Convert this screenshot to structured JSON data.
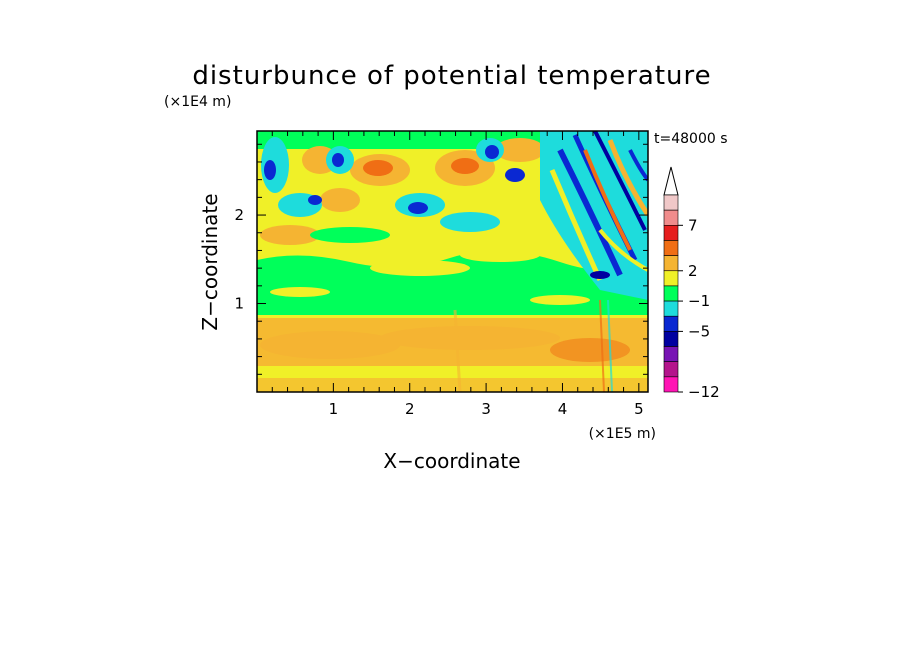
{
  "chart_data": {
    "type": "heatmap",
    "title": "disturbunce of potential temperature",
    "xlabel": "X−coordinate",
    "ylabel": "Z−coordinate",
    "x_unit": "(×1E5 m)",
    "y_unit": "(×1E4 m)",
    "time_label": "t=48000 s",
    "xlim": [
      0,
      5.12
    ],
    "ylim": [
      0,
      2.95
    ],
    "x_ticks": [
      "1",
      "2",
      "3",
      "4",
      "5"
    ],
    "y_ticks": [
      "1",
      "2"
    ],
    "colorbar": {
      "tick_labels": [
        "7",
        "2",
        "−1",
        "−5",
        "−12"
      ],
      "colors_top_to_bottom": [
        "#f0c8c8",
        "#f08c8c",
        "#e61e1e",
        "#f06e14",
        "#f5b432",
        "#f0f028",
        "#00ff5a",
        "#1edcdc",
        "#0a28d2",
        "#0000a0",
        "#7814b4",
        "#b4148c",
        "#ff14b4"
      ],
      "extend_top_arrow": true
    },
    "colors": {
      "c_hot": "#e61e1e",
      "c_orange": "#f06e14",
      "c_lightorange": "#f5b432",
      "c_yellow": "#f0f028",
      "c_green": "#00ff5a",
      "c_cyan": "#1edcdc",
      "c_blue": "#0a28d2",
      "c_darkblue": "#0000a0"
    }
  }
}
